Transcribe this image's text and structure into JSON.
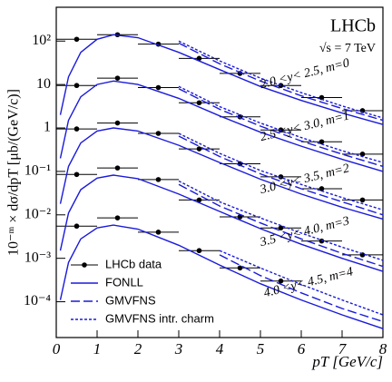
{
  "chart_data": {
    "type": "line",
    "log_y": true,
    "experiment": "LHCb",
    "energy": "√s = 7 TeV",
    "xlabel": "pT [GeV/c]",
    "ylabel": "10⁻ᵐ × dσ/dpT [μb/(GeV/c)]",
    "xlim": [
      0,
      8
    ],
    "ylim": [
      1.5e-05,
      600
    ],
    "xticks": [
      0,
      1,
      2,
      3,
      4,
      5,
      6,
      7,
      8
    ],
    "yticks": [
      {
        "value": 100,
        "label": "10²"
      },
      10,
      1,
      {
        "value": 0.1,
        "label": "10⁻¹"
      },
      {
        "value": 0.01,
        "label": "10⁻²"
      },
      {
        "value": 0.001,
        "label": "10⁻³"
      },
      {
        "value": 0.0001,
        "label": "10⁻⁴"
      }
    ],
    "legend": "lower left",
    "annotations": [
      "2.0 <y< 2.5, m=0",
      "2.5 <y< 3.0, m=1",
      "3.0 <y< 3.5, m=2",
      "3.5 <y< 4.0, m=3",
      "4.0 <y< 4.5, m=4"
    ],
    "series": [
      {
        "name": "LHCb data",
        "color": "#000000",
        "style": "points",
        "curves": [
          {
            "x": [
              0.5,
              1.5,
              2.5,
              3.5,
              4.5,
              5.5,
              6.5,
              7.5
            ],
            "values": [
              110,
              140,
              85,
              40,
              18,
              9.5,
              5,
              2.5
            ]
          },
          {
            "x": [
              0.5,
              1.5,
              2.5,
              3.5,
              4.5,
              5.5,
              6.5,
              7.5
            ],
            "values": [
              9.5,
              14,
              8.5,
              3.8,
              1.8,
              0.9,
              0.48,
              0.25
            ]
          },
          {
            "x": [
              0.5,
              1.5,
              2.5,
              3.5,
              4.5,
              5.5,
              6.5,
              7.5
            ],
            "values": [
              0.95,
              1.3,
              0.75,
              0.33,
              0.15,
              0.075,
              0.04,
              0.022
            ]
          },
          {
            "x": [
              0.5,
              1.5,
              2.5,
              3.5,
              4.5,
              5.5,
              6.5,
              7.5
            ],
            "values": [
              0.085,
              0.12,
              0.065,
              0.022,
              0.009,
              0.005,
              0.0025,
              0.0012
            ]
          },
          {
            "x": [
              0.5,
              1.5,
              2.5,
              3.5,
              4.5,
              5.5
            ],
            "values": [
              0.0055,
              0.0085,
              0.004,
              0.0015,
              0.0006,
              0.0003
            ]
          }
        ]
      },
      {
        "name": "FONLL",
        "color": "#1a1adb",
        "style": "solid",
        "curves": [
          {
            "x": [
              0.1,
              0.3,
              0.6,
              1,
              1.4,
              2,
              3,
              4,
              5,
              6,
              7,
              8
            ],
            "values": [
              2,
              15,
              55,
              110,
              140,
              120,
              55,
              22,
              9,
              4.3,
              2.2,
              1.2
            ]
          },
          {
            "x": [
              0.1,
              0.3,
              0.6,
              1,
              1.4,
              2,
              3,
              4,
              5,
              6,
              7,
              8
            ],
            "values": [
              0.2,
              1.5,
              5.2,
              10,
              12,
              10,
              4.8,
              1.9,
              0.8,
              0.38,
              0.19,
              0.1
            ]
          },
          {
            "x": [
              0.1,
              0.3,
              0.6,
              1,
              1.4,
              2,
              3,
              4,
              5,
              6,
              7,
              8
            ],
            "values": [
              0.018,
              0.13,
              0.45,
              0.85,
              1,
              0.85,
              0.4,
              0.16,
              0.066,
              0.03,
              0.015,
              0.008
            ]
          },
          {
            "x": [
              0.1,
              0.3,
              0.6,
              1,
              1.4,
              2,
              3,
              4,
              5,
              6,
              7,
              8
            ],
            "values": [
              0.0015,
              0.011,
              0.038,
              0.07,
              0.082,
              0.068,
              0.03,
              0.012,
              0.0048,
              0.0021,
              0.001,
              0.0005
            ]
          },
          {
            "x": [
              0.1,
              0.3,
              0.6,
              1,
              1.4,
              2,
              3,
              4,
              5,
              6,
              7,
              8
            ],
            "values": [
              0.00011,
              0.0008,
              0.0028,
              0.005,
              0.0058,
              0.0047,
              0.002,
              0.0007,
              0.00026,
              0.00011,
              5e-05,
              2.4e-05
            ]
          }
        ]
      },
      {
        "name": "GMVFNS",
        "color": "#1a1adb",
        "style": "dashed",
        "curves": [
          {
            "x": [
              3,
              4,
              5,
              6,
              7,
              8
            ],
            "values": [
              90,
              30,
              12,
              5.5,
              2.8,
              1.5
            ]
          },
          {
            "x": [
              3,
              4,
              5,
              6,
              7,
              8
            ],
            "values": [
              8,
              2.7,
              1.1,
              0.5,
              0.25,
              0.13
            ]
          },
          {
            "x": [
              3,
              4,
              5,
              6,
              7,
              8
            ],
            "values": [
              0.65,
              0.22,
              0.088,
              0.04,
              0.02,
              0.01
            ]
          },
          {
            "x": [
              3,
              4,
              5,
              6,
              7,
              8
            ],
            "values": [
              0.05,
              0.016,
              0.0065,
              0.0028,
              0.0013,
              0.00065
            ]
          },
          {
            "x": [
              4,
              5,
              6,
              7,
              8
            ],
            "values": [
              0.0012,
              0.0004,
              0.00016,
              7e-05,
              3.5e-05
            ]
          }
        ]
      },
      {
        "name": "GMVFNS intr. charm",
        "color": "#1a1adb",
        "style": "dotted",
        "curves": [
          {
            "x": [
              3,
              4,
              5,
              6,
              7,
              8
            ],
            "values": [
              100,
              35,
              14,
              6.5,
              3.2,
              1.7
            ]
          },
          {
            "x": [
              3,
              4,
              5,
              6,
              7,
              8
            ],
            "values": [
              9,
              3.1,
              1.3,
              0.6,
              0.3,
              0.16
            ]
          },
          {
            "x": [
              3,
              4,
              5,
              6,
              7,
              8
            ],
            "values": [
              0.75,
              0.26,
              0.105,
              0.05,
              0.025,
              0.013
            ]
          },
          {
            "x": [
              3,
              4,
              5,
              6,
              7,
              8
            ],
            "values": [
              0.06,
              0.02,
              0.0085,
              0.0038,
              0.0018,
              0.0009
            ]
          },
          {
            "x": [
              4,
              5,
              6,
              7,
              8
            ],
            "values": [
              0.0015,
              0.0006,
              0.00025,
              0.00011,
              5e-05
            ]
          }
        ]
      }
    ]
  }
}
